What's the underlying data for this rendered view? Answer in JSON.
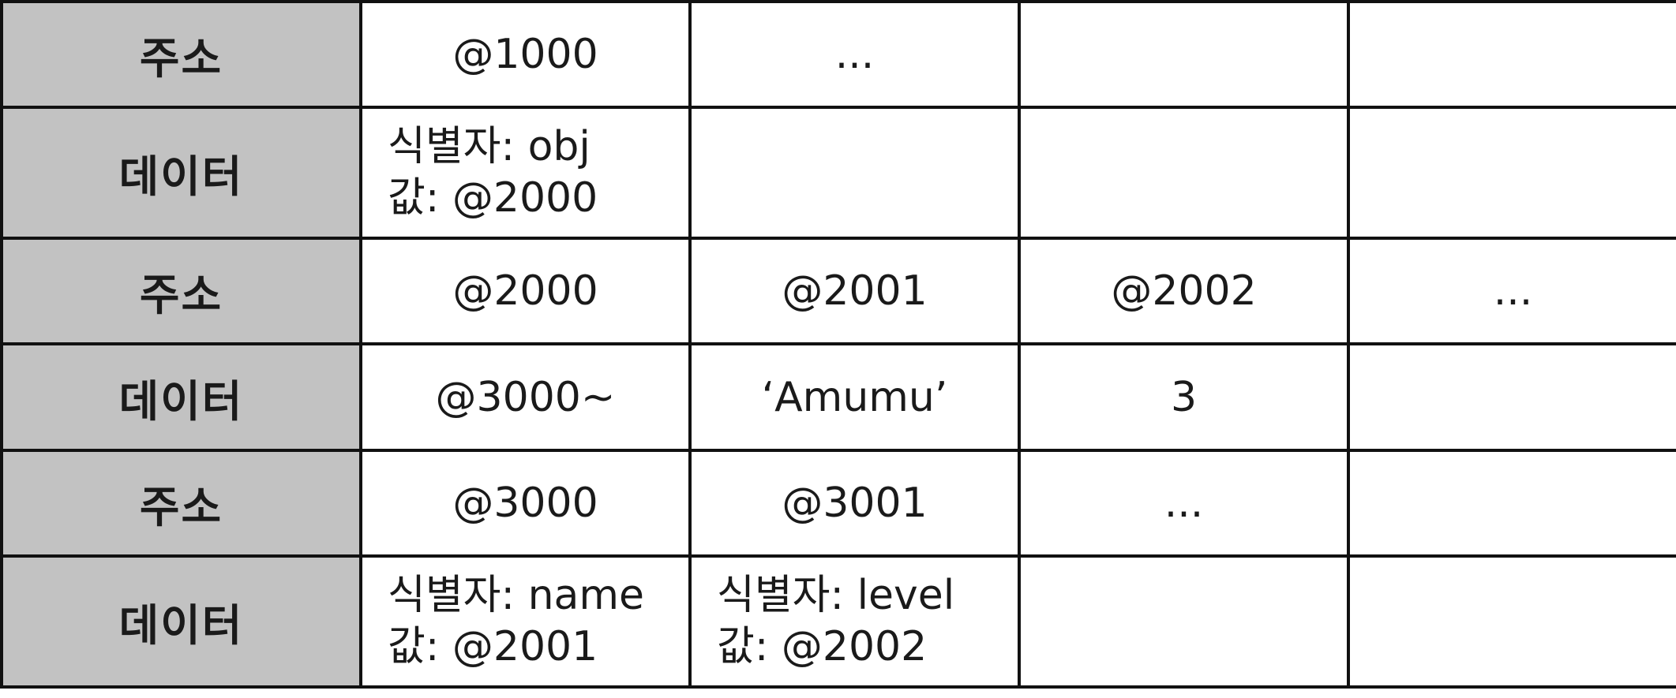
{
  "rows": [
    {
      "header": "주소",
      "cells": [
        "@1000",
        "...",
        "",
        ""
      ]
    },
    {
      "header": "데이터",
      "cells": [
        {
          "line1": "식별자: obj",
          "line2": "값: @2000"
        },
        "",
        "",
        ""
      ]
    },
    {
      "header": "주소",
      "cells": [
        "@2000",
        "@2001",
        "@2002",
        "..."
      ]
    },
    {
      "header": "데이터",
      "cells": [
        "@3000~",
        "‘Amumu’",
        "3",
        ""
      ]
    },
    {
      "header": "주소",
      "cells": [
        "@3000",
        "@3001",
        "...",
        ""
      ]
    },
    {
      "header": "데이터",
      "cells": [
        {
          "line1": "식별자: name",
          "line2": "값: @2001"
        },
        {
          "line1": "식별자: level",
          "line2": "값: @2002"
        },
        "",
        ""
      ]
    }
  ]
}
